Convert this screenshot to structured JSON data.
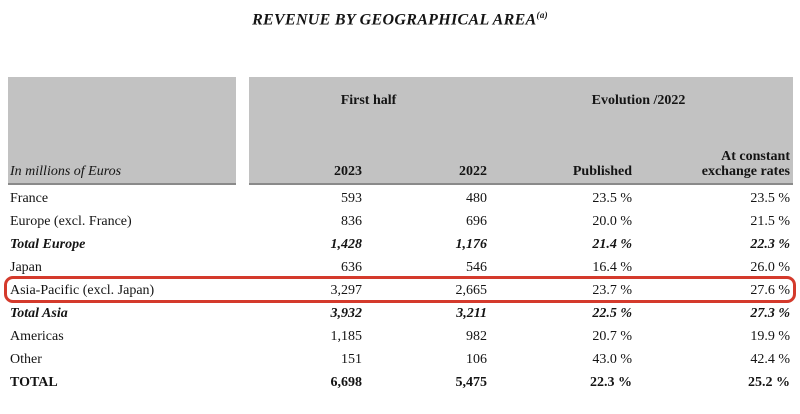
{
  "title": {
    "text": "REVENUE BY GEOGRAPHICAL AREA",
    "superscript": "(a)"
  },
  "table": {
    "group_headers": {
      "first_half": "First half",
      "evolution": "Evolution /2022"
    },
    "unit_label": "In millions of Euros",
    "columns": {
      "y2023": "2023",
      "y2022": "2022",
      "published": "Published",
      "constant_line1": "At constant",
      "constant_line2": "exchange rates"
    },
    "rows": [
      {
        "label": "France",
        "v2023": "593",
        "v2022": "480",
        "published": "23.5 %",
        "constant": "23.5 %",
        "style": "normal"
      },
      {
        "label": "Europe (excl. France)",
        "v2023": "836",
        "v2022": "696",
        "published": "20.0 %",
        "constant": "21.5 %",
        "style": "normal"
      },
      {
        "label": "Total Europe",
        "v2023": "1,428",
        "v2022": "1,176",
        "published": "21.4 %",
        "constant": "22.3 %",
        "style": "subtotal"
      },
      {
        "label": "Japan",
        "v2023": "636",
        "v2022": "546",
        "published": "16.4 %",
        "constant": "26.0 %",
        "style": "normal"
      },
      {
        "label": "Asia-Pacific (excl. Japan)",
        "v2023": "3,297",
        "v2022": "2,665",
        "published": "23.7 %",
        "constant": "27.6 %",
        "style": "normal",
        "highlighted": true
      },
      {
        "label": "Total Asia",
        "v2023": "3,932",
        "v2022": "3,211",
        "published": "22.5 %",
        "constant": "27.3 %",
        "style": "subtotal"
      },
      {
        "label": "Americas",
        "v2023": "1,185",
        "v2022": "982",
        "published": "20.7 %",
        "constant": "19.9 %",
        "style": "normal"
      },
      {
        "label": "Other",
        "v2023": "151",
        "v2022": "106",
        "published": "43.0 %",
        "constant": "42.4 %",
        "style": "normal"
      },
      {
        "label": "TOTAL",
        "v2023": "6,698",
        "v2022": "5,475",
        "published": "22.3 %",
        "constant": "25.2 %",
        "style": "total"
      }
    ]
  },
  "colors": {
    "header_bg": "#c2c2c2",
    "header_rule": "#8a8a8a",
    "highlight_border": "#d43a2c",
    "text": "#141414"
  }
}
